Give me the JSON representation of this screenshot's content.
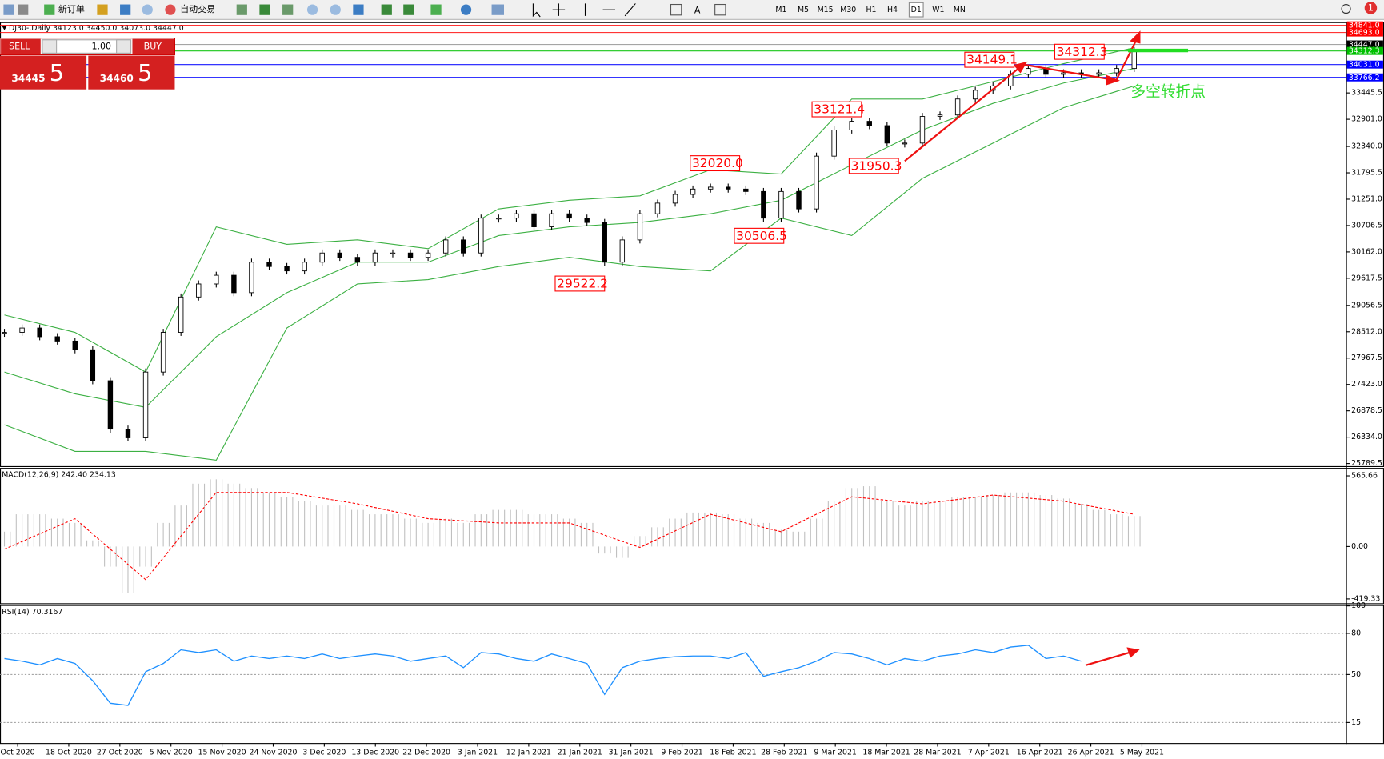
{
  "toolbar": {
    "new_order": "新订单",
    "auto_trading": "自动交易",
    "timeframes": [
      "M1",
      "M5",
      "M15",
      "M30",
      "H1",
      "H4",
      "D1",
      "W1",
      "MN"
    ],
    "notifications": "1"
  },
  "trade_panel": {
    "sell": "SELL",
    "buy": "BUY",
    "lots": "1.00",
    "sell_price": "34445",
    "sell_pip": "5",
    "buy_price": "34460",
    "buy_pip": "5"
  },
  "chart_data": [
    {
      "type": "candlestick",
      "title": "DJ30-,Daily  34123.0 34450.0 34073.0 34447.0",
      "ylim": [
        25735,
        34889
      ],
      "yticks": [
        33445.5,
        {
          "value": 32901,
          "label": "32901.0"
        },
        {
          "value": 32340,
          "label": "32340.0"
        },
        31795.5,
        {
          "value": 31251,
          "label": "31251.0"
        },
        30706.5,
        {
          "value": 30162,
          "label": "30162.0"
        },
        29617.5,
        29056.5,
        {
          "value": 28512,
          "label": "28512.0"
        },
        27967.5,
        {
          "value": 27423,
          "label": "27423.0"
        },
        26878.5,
        {
          "value": 26334,
          "label": "26334.0"
        },
        25789.5
      ],
      "date_labels": [
        "Oct 2020",
        "18 Oct 2020",
        "27 Oct 2020",
        "5 Nov 2020",
        "15 Nov 2020",
        "24 Nov 2020",
        "3 Dec 2020",
        "13 Dec 2020",
        "22 Dec 2020",
        "3 Jan 2021",
        "12 Jan 2021",
        "21 Jan 2021",
        "31 Jan 2021",
        "9 Feb 2021",
        "18 Feb 2021",
        "28 Feb 2021",
        "9 Mar 2021",
        "18 Mar 2021",
        "28 Mar 2021",
        "7 Apr 2021",
        "16 Apr 2021",
        "26 Apr 2021",
        "5 May 2021"
      ],
      "close": [
        28500,
        28590,
        28410,
        28320,
        28140,
        27500,
        26500,
        26320,
        27680,
        28500,
        29230,
        29500,
        29680,
        29320,
        29950,
        29860,
        29770,
        29950,
        30140,
        30050,
        29950,
        30140,
        30140,
        30050,
        30140,
        30410,
        30140,
        30860,
        30860,
        30950,
        30680,
        30950,
        30860,
        30770,
        29950,
        30410,
        30950,
        31170,
        31350,
        31460,
        31500,
        31460,
        31410,
        30860,
        31410,
        31050,
        32140,
        32680,
        32860,
        32770,
        32410,
        32410,
        32960,
        32990,
        33320,
        33500,
        33590,
        33830,
        33950,
        33830,
        33860,
        33830,
        33860,
        33950,
        34320
      ],
      "color": "#000000",
      "bollinger": {
        "color": "#3cb043",
        "upper": [
          28860,
          28500,
          27680,
          30680,
          30320,
          30410,
          30230,
          31050,
          31230,
          31320,
          31860,
          31770,
          33320,
          33320,
          33680,
          34050,
          34380
        ],
        "middle": [
          27680,
          27230,
          26950,
          28410,
          29320,
          29950,
          29950,
          30500,
          30680,
          30770,
          30950,
          31230,
          31960,
          32680,
          33230,
          33650,
          33950
        ],
        "lower": [
          26590,
          26040,
          26040,
          25860,
          28590,
          29500,
          29590,
          29860,
          30050,
          29860,
          29770,
          30860,
          30500,
          31680,
          32410,
          33140,
          33590
        ]
      },
      "price_levels": [
        {
          "value": 34841,
          "label": "34841.0",
          "color": "#ff0000"
        },
        {
          "value": 34693,
          "label": "34693.0",
          "color": "#ff0000"
        },
        {
          "value": 34447,
          "label": "34447.0",
          "color": "#000000"
        },
        {
          "value": 34312.3,
          "color": "#00c000"
        },
        {
          "value": 34031,
          "label": "34031.0",
          "color": "#0000ff"
        },
        {
          "value": 33766.2,
          "color": "#0000ff"
        }
      ],
      "callouts": [
        "34149.1",
        "34312.3",
        "33121.4",
        "32020.0",
        "31950.3",
        "30506.5",
        "29522.2"
      ],
      "note": "多空转折点"
    },
    {
      "type": "macd",
      "title": "MACD(12,26,9) 242.40 234.13",
      "ylim": [
        -454,
        622
      ],
      "yticks": [
        565.66,
        {
          "value": 0,
          "label": "0.00"
        },
        -419.33
      ],
      "values": [
        119,
        258,
        258,
        223,
        189,
        49,
        -161,
        -370,
        -161,
        189,
        328,
        503,
        538,
        503,
        468,
        433,
        398,
        363,
        328,
        328,
        293,
        258,
        258,
        223,
        189,
        223,
        189,
        258,
        293,
        293,
        258,
        258,
        223,
        189,
        -56,
        -91,
        84,
        154,
        223,
        272,
        272,
        258,
        223,
        189,
        133,
        119,
        223,
        363,
        468,
        482,
        363,
        328,
        363,
        363,
        398,
        398,
        412,
        433,
        433,
        412,
        384,
        342,
        293,
        258,
        244
      ],
      "color": "#c0c0c0",
      "signal": [
        -21,
        223,
        -265,
        433,
        433,
        342,
        223,
        189,
        189,
        -7,
        258,
        119,
        398,
        342,
        412,
        363,
        258
      ],
      "signal_color": "#ff0000"
    },
    {
      "type": "rsi",
      "title": "RSI(14) 70.3167",
      "ylim": [
        0,
        100
      ],
      "yticks": [
        100,
        80,
        50,
        15
      ],
      "levels": [
        80,
        50,
        15
      ],
      "values": [
        61.6,
        59.7,
        57,
        61.6,
        58,
        45.5,
        29,
        27.4,
        52,
        58,
        68,
        66,
        68,
        59.7,
        63.5,
        61.6,
        63.5,
        61.6,
        65,
        61.6,
        63.5,
        65,
        63.5,
        59.7,
        61.6,
        63.5,
        55,
        66,
        65,
        61.6,
        59.7,
        65,
        61.6,
        58,
        35.5,
        55,
        59.7,
        61.6,
        63,
        63.5,
        63.5,
        61.6,
        66,
        48.7,
        52,
        55,
        59.7,
        66,
        65,
        61.6,
        57,
        61.6,
        59.7,
        63.5,
        65,
        68,
        66,
        70,
        71.3,
        61.6,
        63.5,
        59.7,
        null,
        null,
        null
      ],
      "color": "#1e90ff"
    }
  ]
}
